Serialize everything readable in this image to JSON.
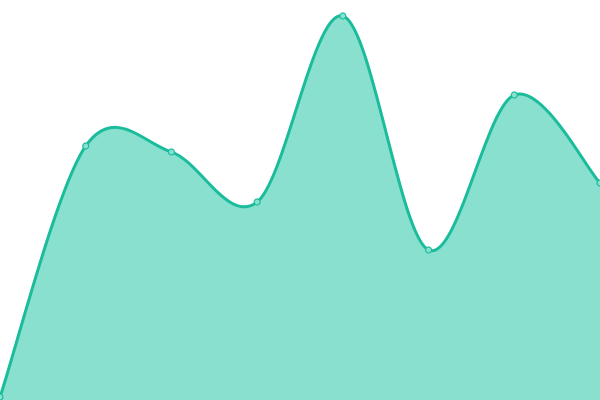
{
  "chart_data": {
    "type": "area",
    "title": "",
    "xlabel": "",
    "ylabel": "",
    "x": [
      0,
      1,
      2,
      3,
      4,
      5,
      6,
      7
    ],
    "series": [
      {
        "values": [
          3,
          254,
          248,
          198,
          384,
          150,
          305,
          217
        ]
      }
    ],
    "ylim": [
      0,
      400
    ],
    "grid": false,
    "legend": "none",
    "smooth": true,
    "colors": {
      "line": "#1abc9c",
      "fill": "#89e0cf",
      "point_fill": "#89e0cf",
      "point_stroke": "#1abc9c"
    }
  }
}
